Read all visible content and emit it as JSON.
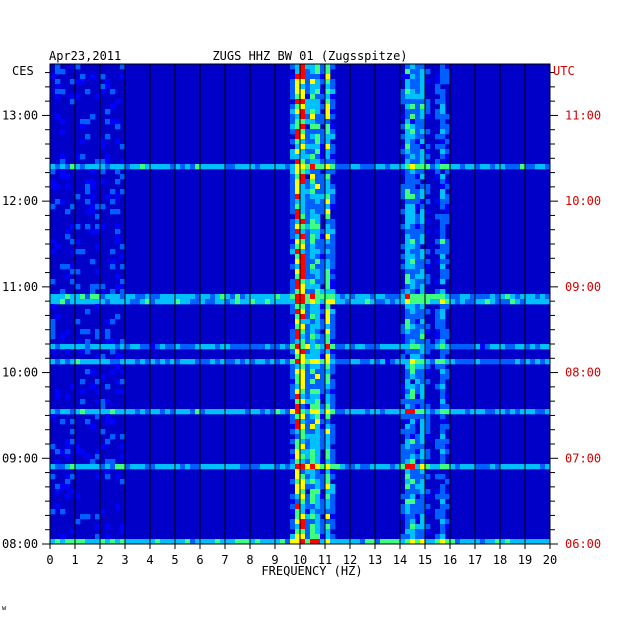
{
  "chart_data": {
    "type": "heatmap",
    "date": "Apr23,2011",
    "title": "ZUGS HHZ BW 01 (Zugsspitze)",
    "xlabel": "FREQUENCY (HZ)",
    "xlim": [
      0,
      20
    ],
    "x_ticks": [
      "0",
      "1",
      "2",
      "3",
      "4",
      "5",
      "6",
      "7",
      "8",
      "9",
      "10",
      "11",
      "12",
      "13",
      "14",
      "15",
      "16",
      "17",
      "18",
      "19",
      "20"
    ],
    "left_axis_label": "CES",
    "right_axis_label": "UTC",
    "ylim_hours_ces": [
      8,
      13.6
    ],
    "left_ticks": [
      {
        "hour": 13,
        "label": "13:00"
      },
      {
        "hour": 12,
        "label": "12:00"
      },
      {
        "hour": 11,
        "label": "11:00"
      },
      {
        "hour": 10,
        "label": "10:00"
      },
      {
        "hour": 9,
        "label": "09:00"
      },
      {
        "hour": 8,
        "label": "08:00"
      }
    ],
    "right_ticks": [
      {
        "hour": 13,
        "label": "11:00"
      },
      {
        "hour": 12,
        "label": "10:00"
      },
      {
        "hour": 11,
        "label": "09:00"
      },
      {
        "hour": 10,
        "label": "08:00"
      },
      {
        "hour": 9,
        "label": "07:00"
      },
      {
        "hour": 8,
        "label": "06:00"
      }
    ],
    "colormap": [
      "#00008b",
      "#0000ff",
      "#0060ff",
      "#00c0ff",
      "#40ff80",
      "#ffff00",
      "#ff0000"
    ],
    "background_color": "#0000c8",
    "energy_bands_hz": [
      {
        "center": 10.0,
        "width": 0.25,
        "strength": 0.85
      },
      {
        "center": 10.6,
        "width": 0.2,
        "strength": 0.6
      },
      {
        "center": 11.1,
        "width": 0.2,
        "strength": 0.55
      },
      {
        "center": 14.4,
        "width": 0.25,
        "strength": 0.45
      },
      {
        "center": 14.9,
        "width": 0.2,
        "strength": 0.35
      },
      {
        "center": 15.7,
        "width": 0.2,
        "strength": 0.3
      }
    ]
  },
  "footer_mark": "w"
}
